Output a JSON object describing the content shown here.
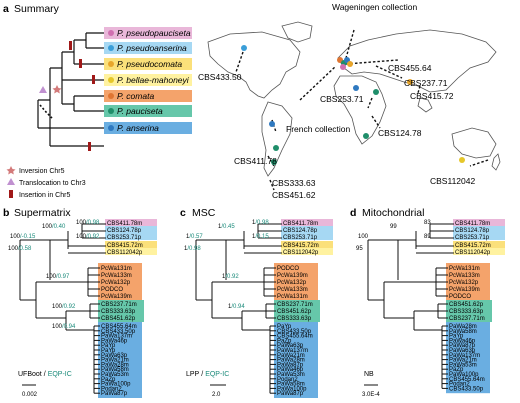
{
  "panel_a": {
    "letter": "a",
    "title": "Summary",
    "species": [
      {
        "name": "P. pseudopauciseta",
        "color": "#e9b7d9"
      },
      {
        "name": "P. pseudoanserina",
        "color": "#a6d8f3"
      },
      {
        "name": "P. pseudocomata",
        "color": "#fbe07a"
      },
      {
        "name": "P. bellae-mahoneyi",
        "color": "#fff2a0"
      },
      {
        "name": "P. comata",
        "color": "#f4a36b"
      },
      {
        "name": "P. pauciseta",
        "color": "#66c7aa"
      },
      {
        "name": "P. anserina",
        "color": "#6aaee1"
      }
    ],
    "legend": {
      "inversion": "Inversion Chr5",
      "translocation": "Translocation to Chr3",
      "insertion": "Insertion in Chr5"
    },
    "map_labels": {
      "wageningen": "Wageningen collection",
      "french": "French collection",
      "cbs433": "CBS433.50",
      "cbs455": "CBS455.64",
      "cbs237": "CBS237.71",
      "cbs415": "CBS415.72",
      "cbs253": "CBS253.71",
      "cbs124": "CBS124.78",
      "cbs411": "CBS411.78",
      "cbs333": "CBS333.63",
      "cbs451": "CBS451.62",
      "cbs112": "CBS112042"
    }
  },
  "panel_b": {
    "letter": "b",
    "title": "Supermatrix",
    "method": "UFBoot",
    "sep": "/",
    "method2": "EQP-IC",
    "scale": "0.002",
    "supports": [
      "100/0.40",
      "100/0.98",
      "100/-0.15",
      "100/0.92",
      "100/0.58",
      "100/0.97",
      "100/0.92",
      "100/0.94"
    ],
    "taxa_top": [
      "CBS411.78m",
      "CBS124.78p",
      "CBS253.71p",
      "CBS415.72m",
      "CBS112042p"
    ],
    "comata": [
      "PcWa131m",
      "PcWa133m",
      "PcWa132p",
      "PODCO",
      "PcWa139m"
    ],
    "pauciseta": [
      "CBS237.71m",
      "CBS333.63p",
      "CBS451.62p"
    ],
    "anserina": [
      "CBS455.64m",
      "CBS433.50p",
      "PaWa137m",
      "PaWa46p",
      "PaYp",
      "PaYp",
      "PaWa63p",
      "PaWa21m",
      "PaWa28m",
      "PaWa58m",
      "PaWa53m",
      "PaZp",
      "PaWa100p",
      "Podan2",
      "PaWa87p"
    ]
  },
  "panel_c": {
    "letter": "c",
    "title": "MSC",
    "method": "LPP",
    "sep": "/",
    "method2": "EQP-IC",
    "scale": "2.0",
    "supports": [
      "1/0.45",
      "1/0.98",
      "1/0.57",
      "1/0.15",
      "1/0.98",
      "1/0.92",
      "1/0.94"
    ],
    "taxa_top": [
      "CBS411.78m",
      "CBS124.78p",
      "CBS253.71p",
      "CBS415.72m",
      "CBS112042p"
    ],
    "comata": [
      "PODCO",
      "PcWa139m",
      "PcWa132p",
      "PcWa133m",
      "PcWa131m"
    ],
    "pauciseta": [
      "CBS237.71m",
      "CBS451.62p",
      "CBS333.63p"
    ],
    "anserina": [
      "PaYp",
      "CBS433.50p",
      "CBS455.64m",
      "PaZp",
      "PaWa63p",
      "PaWa137m",
      "PaWa21m",
      "PaWa28m",
      "PaWa87p",
      "PaWa46p",
      "PaWa53m",
      "Podan2",
      "PaWa58m",
      "PaWa100p",
      "PaWa87p"
    ]
  },
  "panel_d": {
    "letter": "d",
    "title": "Mitochondrial",
    "method": "NB",
    "scale": "3.0E-4",
    "supports": [
      "99",
      "83",
      "100",
      "89",
      "95"
    ],
    "taxa_top": [
      "CBS411.78m",
      "CBS124.78p",
      "CBS253.71p",
      "CBS415.72m",
      "CBS112042p"
    ],
    "comata": [
      "PcWa131m",
      "PcWa133m",
      "PcWa132p",
      "PcWa139m",
      "PODCO"
    ],
    "pauciseta": [
      "CBS451.62p",
      "CBS333.63p",
      "CBS237.71m"
    ],
    "anserina": [
      "PaWa28m",
      "PaWa58m",
      "PaYp",
      "PaWa46p",
      "PaWa87p",
      "PaWa63p",
      "PaWa137m",
      "PaWa21m",
      "PaWa53m",
      "PaZp",
      "PaWa100p",
      "CBS455.64m",
      "Podan2",
      "CBS433.50p"
    ]
  }
}
